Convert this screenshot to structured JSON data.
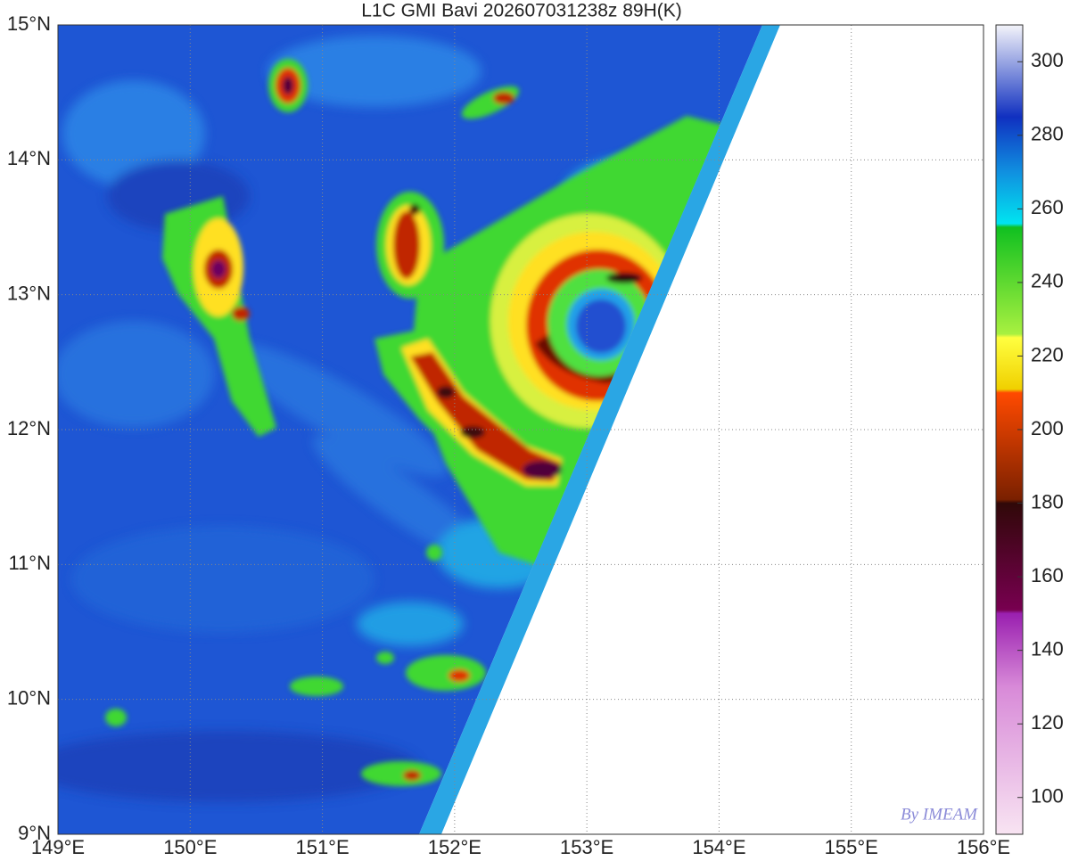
{
  "title": "L1C GMI Bavi 202607031238z 89H(K)",
  "x_axis": {
    "lim": [
      149,
      156
    ],
    "ticks": [
      {
        "value": 149,
        "label": "149°E"
      },
      {
        "value": 150,
        "label": "150°E"
      },
      {
        "value": 151,
        "label": "151°E"
      },
      {
        "value": 152,
        "label": "152°E"
      },
      {
        "value": 153,
        "label": "153°E"
      },
      {
        "value": 154,
        "label": "154°E"
      },
      {
        "value": 155,
        "label": "155°E"
      },
      {
        "value": 156,
        "label": "156°E"
      }
    ]
  },
  "y_axis": {
    "lim": [
      9,
      15
    ],
    "ticks": [
      {
        "value": 9,
        "label": "9°N"
      },
      {
        "value": 10,
        "label": "10°N"
      },
      {
        "value": 11,
        "label": "11°N"
      },
      {
        "value": 12,
        "label": "12°N"
      },
      {
        "value": 13,
        "label": "13°N"
      },
      {
        "value": 14,
        "label": "14°N"
      },
      {
        "value": 15,
        "label": "15°N"
      }
    ]
  },
  "grid": true,
  "colorbar": {
    "lim": [
      90,
      310
    ],
    "ticks": [
      100,
      120,
      140,
      160,
      180,
      200,
      220,
      240,
      260,
      280,
      300
    ],
    "colormap": [
      {
        "value": 90,
        "color": "#f8e4f2"
      },
      {
        "value": 130,
        "color": "#d88ad8"
      },
      {
        "value": 150,
        "color": "#9a20b0"
      },
      {
        "value": 151,
        "color": "#780050"
      },
      {
        "value": 180,
        "color": "#300808"
      },
      {
        "value": 181,
        "color": "#7a2000"
      },
      {
        "value": 210,
        "color": "#ff4a00"
      },
      {
        "value": 211,
        "color": "#f0d000"
      },
      {
        "value": 225,
        "color": "#ffff40"
      },
      {
        "value": 226,
        "color": "#a8f040"
      },
      {
        "value": 255,
        "color": "#10c020"
      },
      {
        "value": 256,
        "color": "#00e4f0"
      },
      {
        "value": 270,
        "color": "#1090e0"
      },
      {
        "value": 285,
        "color": "#1030c0"
      },
      {
        "value": 310,
        "color": "#f4f4fa"
      }
    ]
  },
  "watermark": "By IMEAM"
}
